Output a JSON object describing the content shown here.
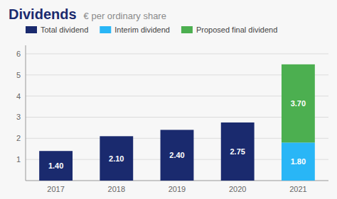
{
  "chart_data": {
    "type": "bar",
    "title": "Dividends",
    "subtitle": "€ per ordinary share",
    "categories": [
      "2017",
      "2018",
      "2019",
      "2020",
      "2021"
    ],
    "series": [
      {
        "name": "Total dividend",
        "color": "#1a2a6e",
        "values": [
          1.4,
          2.1,
          2.4,
          2.75,
          0
        ],
        "value_labels": [
          "1.40",
          "2.10",
          "2.40",
          "2.75",
          null
        ]
      },
      {
        "name": "Interim dividend",
        "color": "#29b6f6",
        "values": [
          0,
          0,
          0,
          0,
          1.8
        ],
        "value_labels": [
          null,
          null,
          null,
          null,
          "1.80"
        ]
      },
      {
        "name": "Proposed final dividend",
        "color": "#4caf50",
        "values": [
          0,
          0,
          0,
          0,
          3.7
        ],
        "value_labels": [
          null,
          null,
          null,
          null,
          "3.70"
        ]
      }
    ],
    "stacked": true,
    "data_labels": true,
    "ylim": [
      0,
      6.4
    ],
    "yticks": [
      1,
      2,
      3,
      4,
      5,
      6
    ],
    "grid": true,
    "legend": "top"
  }
}
